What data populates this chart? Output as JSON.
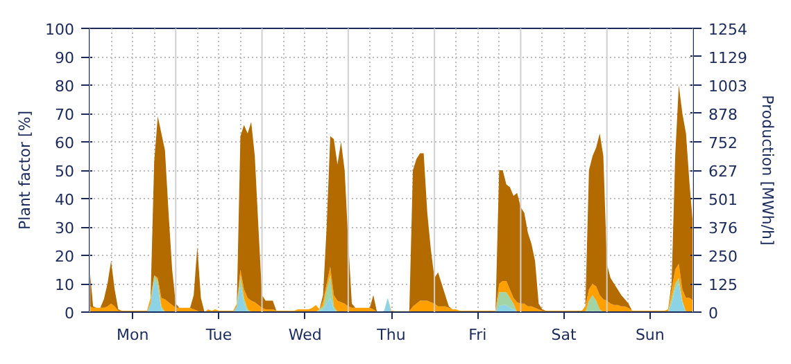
{
  "chart_data": {
    "type": "area",
    "stacked": true,
    "ylabel": "Plant factor [%]",
    "y2label": "Production [MWh/h]",
    "categories": [
      null,
      null,
      null,
      null,
      null,
      null,
      null,
      null,
      null,
      null,
      null,
      null,
      "Mon",
      null,
      null,
      null,
      null,
      null,
      null,
      null,
      null,
      null,
      null,
      null,
      null,
      null,
      null,
      null,
      null,
      null,
      null,
      null,
      null,
      null,
      null,
      null,
      "Tue",
      null,
      null,
      null,
      null,
      null,
      null,
      null,
      null,
      null,
      null,
      null,
      null,
      null,
      null,
      null,
      null,
      null,
      null,
      null,
      null,
      null,
      null,
      null,
      "Wed",
      null,
      null,
      null,
      null,
      null,
      null,
      null,
      null,
      null,
      null,
      null,
      null,
      null,
      null,
      null,
      null,
      null,
      null,
      null,
      null,
      null,
      null,
      null,
      "Thu",
      null,
      null,
      null,
      null,
      null,
      null,
      null,
      null,
      null,
      null,
      null,
      null,
      null,
      null,
      null,
      null,
      null,
      null,
      null,
      null,
      null,
      null,
      null,
      "Fri",
      null,
      null,
      null,
      null,
      null,
      null,
      null,
      null,
      null,
      null,
      null,
      null,
      null,
      null,
      null,
      null,
      null,
      null,
      null,
      null,
      null,
      null,
      null,
      "Sat",
      null,
      null,
      null,
      null,
      null,
      null,
      null,
      null,
      null,
      null,
      null,
      null,
      null,
      null,
      null,
      null,
      null,
      null,
      null,
      null,
      null,
      null,
      null,
      "Sun",
      null,
      null,
      null,
      null,
      null,
      null,
      null,
      null,
      null,
      null,
      null,
      null
    ],
    "series": [
      {
        "color": "#8dd3e6",
        "values": [
          0,
          0,
          0,
          0,
          0,
          0,
          0,
          0,
          0,
          0,
          0,
          0,
          0,
          0,
          0,
          0,
          0,
          3,
          11,
          9,
          1,
          0,
          0,
          0,
          0,
          0,
          0,
          0,
          0,
          0,
          0,
          0,
          0,
          0,
          0,
          0,
          0,
          0,
          0,
          0,
          0,
          2,
          10,
          3,
          0,
          0,
          0,
          0,
          0,
          0,
          0,
          0,
          0,
          0,
          0,
          0,
          0,
          0,
          0,
          0,
          0,
          0,
          0,
          0,
          0.5,
          1,
          3,
          5,
          1,
          0,
          0,
          0,
          0,
          0,
          0,
          0,
          0,
          0,
          0,
          0,
          0,
          0,
          0.5,
          5,
          0,
          0,
          0,
          0,
          0,
          0,
          0,
          0,
          0,
          0,
          0,
          0,
          0,
          0,
          0,
          0,
          0,
          0,
          0,
          0,
          0,
          0,
          0,
          0,
          0,
          0,
          0,
          0,
          0,
          0,
          2,
          2.5,
          2.5,
          1.5,
          1,
          0,
          0,
          0,
          0,
          0,
          0,
          0,
          0,
          0,
          0,
          0,
          0,
          0,
          0,
          0,
          0,
          0,
          0,
          0,
          0,
          0,
          0.5,
          0,
          0,
          0,
          0,
          0,
          0,
          0,
          0,
          0,
          0,
          0,
          0,
          0,
          0,
          0,
          0,
          0,
          0,
          0,
          0,
          0,
          3,
          8,
          10,
          3,
          0,
          0,
          0
        ]
      },
      {
        "color": "#a2d4a6",
        "values": [
          0,
          0,
          0,
          0,
          0,
          0,
          0,
          0,
          0,
          0,
          0,
          0,
          0,
          0,
          0,
          0,
          0,
          0,
          2,
          2,
          1,
          0,
          0,
          0,
          0,
          0,
          0,
          0,
          0,
          0,
          0,
          0,
          0,
          0,
          0,
          0,
          0,
          0,
          0,
          0,
          0,
          0,
          3,
          2,
          1,
          0,
          0,
          0,
          0,
          0,
          0,
          0,
          0,
          0,
          0,
          0,
          0,
          0,
          0,
          0,
          0,
          0,
          0,
          0,
          0.5,
          1,
          5,
          8,
          1,
          0,
          0,
          0,
          0,
          0,
          0,
          0,
          0,
          0,
          0,
          0,
          0,
          0,
          0,
          0,
          0,
          0,
          0,
          0,
          0,
          0,
          0,
          0,
          0,
          0,
          0,
          0,
          0,
          0,
          0,
          0,
          0,
          0,
          0,
          0,
          0,
          0,
          0,
          0,
          0,
          0,
          0,
          0,
          0,
          0,
          5,
          4.5,
          4.5,
          3.5,
          2,
          0,
          0,
          0,
          0,
          0,
          0,
          0,
          0,
          0,
          0,
          0,
          0,
          0,
          0,
          0,
          0,
          0,
          0,
          0,
          0,
          4,
          5.5,
          4,
          1,
          0,
          0,
          0,
          0,
          0,
          0,
          0,
          0,
          0,
          0,
          0,
          0,
          0,
          0,
          0,
          0,
          0,
          0,
          0,
          2,
          2,
          2,
          1,
          0,
          0,
          0
        ]
      },
      {
        "color": "#ffa000",
        "values": [
          2,
          1.5,
          1.5,
          1.5,
          1.5,
          2,
          3,
          2,
          0.5,
          0.5,
          0.5,
          0.5,
          0.5,
          0.5,
          0.5,
          0.5,
          0.5,
          2,
          0,
          1,
          3,
          4.5,
          3.5,
          2.5,
          1.5,
          1.5,
          1.5,
          1.5,
          1.5,
          1,
          0.5,
          0,
          0,
          1,
          0.5,
          1,
          0.5,
          0.5,
          0.5,
          0.5,
          0.5,
          1,
          2,
          3,
          4,
          4,
          3.5,
          2.5,
          1.5,
          1,
          1,
          1,
          0.5,
          0.5,
          0.5,
          0.5,
          0.5,
          0.5,
          1,
          1,
          1,
          1,
          1.5,
          2.5,
          0,
          2,
          2,
          3,
          4,
          4,
          3.5,
          3,
          2,
          1.5,
          1.5,
          1.5,
          1.5,
          1.5,
          1.5,
          1,
          0,
          0,
          0,
          0,
          0.5,
          0.3,
          0.3,
          0.3,
          0.3,
          0.3,
          2,
          3,
          4,
          4,
          4,
          3.5,
          3,
          2,
          2,
          2,
          1.5,
          1,
          1,
          0.5,
          0.5,
          0.5,
          0.5,
          0.5,
          0.5,
          0.5,
          0.5,
          0.5,
          0.5,
          0.5,
          3,
          4,
          4,
          3,
          2,
          3.5,
          3,
          3,
          2,
          2,
          1.5,
          1,
          0.5,
          0.5,
          0.5,
          0.5,
          0.5,
          0.5,
          0.5,
          0.5,
          0.5,
          0.5,
          0.5,
          0.5,
          2,
          4,
          4,
          5,
          5,
          4.5,
          4,
          3,
          2.5,
          2.5,
          2,
          2,
          1.5,
          0.5,
          0.5,
          0.5,
          0.5,
          0.5,
          0.5,
          0.5,
          0.5,
          0.5,
          0.5,
          1,
          3,
          5,
          5,
          4,
          5,
          5,
          4
        ]
      },
      {
        "color": "#b36b00",
        "values": [
          14,
          0.5,
          0,
          0,
          3,
          8,
          15,
          6,
          0.5,
          0,
          0,
          0,
          0,
          0,
          0,
          0,
          0,
          0,
          40,
          57,
          58,
          52.5,
          31.5,
          12.5,
          1.5,
          0,
          0,
          0,
          0,
          5,
          22.5,
          5,
          0,
          0,
          0,
          0,
          0,
          0,
          0,
          0,
          0,
          0,
          47,
          58,
          58,
          63,
          51.5,
          27.5,
          4.5,
          3,
          3,
          3,
          0,
          0,
          0,
          0,
          0,
          0,
          0,
          0,
          0,
          0,
          0,
          0,
          0,
          2,
          20,
          46,
          55,
          48,
          56.5,
          47,
          23,
          1.5,
          0,
          0,
          0,
          0,
          0,
          5,
          0,
          0,
          0,
          0,
          0,
          0,
          0,
          0,
          0,
          0,
          48,
          51,
          52,
          52,
          31,
          18.5,
          9,
          12,
          8,
          4,
          0.5,
          0,
          0,
          0,
          0,
          0,
          0,
          0,
          0,
          0,
          0,
          0,
          0,
          0,
          40,
          39,
          34,
          36,
          36,
          38.5,
          34,
          32,
          26,
          22,
          16.5,
          2,
          0.5,
          0,
          0,
          0,
          0,
          0,
          0,
          0,
          0,
          0,
          0,
          0,
          0,
          42,
          45,
          49,
          57,
          50.5,
          13,
          9,
          7.5,
          5.5,
          4,
          2.5,
          1.5,
          0,
          0,
          0,
          0,
          0,
          0,
          0,
          0,
          0,
          0,
          0,
          2,
          40,
          63,
          62,
          58,
          40,
          26
        ]
      }
    ],
    "ylim": [
      0,
      100
    ],
    "yticks": [
      0,
      10,
      20,
      30,
      40,
      50,
      60,
      70,
      80,
      90,
      100
    ],
    "y2lim": [
      0,
      1254
    ],
    "y2ticks": [
      0,
      125,
      250,
      376,
      501,
      627,
      752,
      878,
      1003,
      1129,
      1254
    ],
    "grid": true
  }
}
